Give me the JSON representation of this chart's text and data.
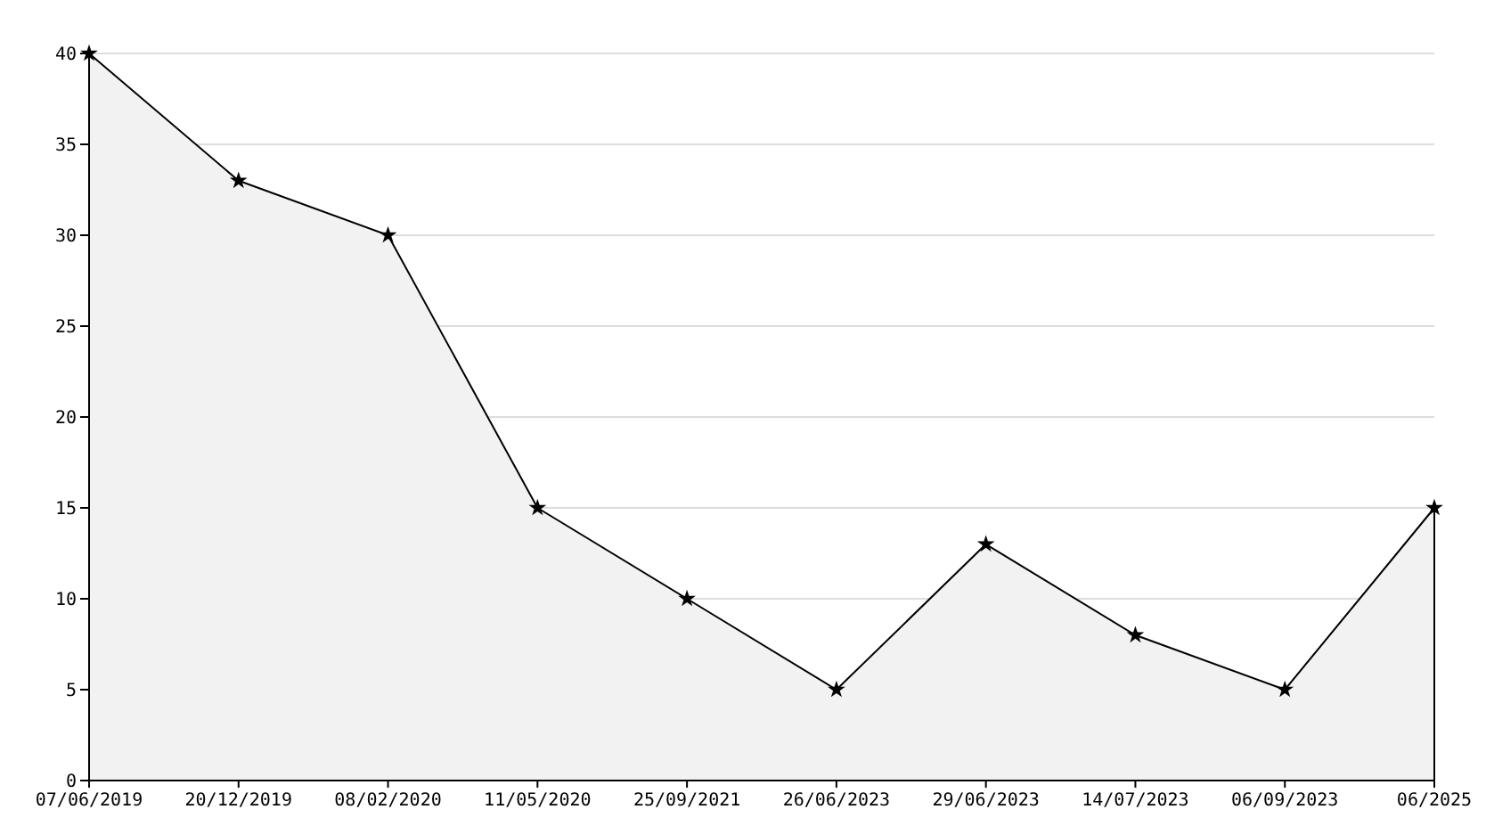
{
  "chart_data": {
    "type": "area",
    "categories": [
      "07/06/2019",
      "20/12/2019",
      "08/02/2020",
      "11/05/2020",
      "25/09/2021",
      "26/06/2023",
      "29/06/2023",
      "14/07/2023",
      "06/09/2023",
      "06/2025"
    ],
    "series": [
      {
        "color": "#000000",
        "values": [
          40,
          33,
          30,
          15,
          10,
          5,
          13,
          8,
          5,
          15
        ]
      }
    ],
    "ylim": [
      0,
      40
    ],
    "yticks": [
      0,
      5,
      10,
      15,
      20,
      25,
      30,
      35,
      40
    ],
    "grid": "y",
    "marker": "star",
    "line_style": "solid"
  }
}
